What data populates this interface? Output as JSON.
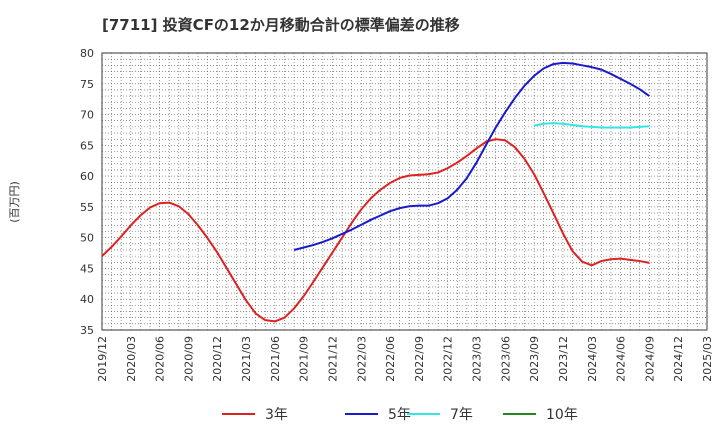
{
  "chart_data": {
    "type": "line",
    "title": "[7711]  投資CFの12か月移動合計の標準偏差の推移",
    "ylabel": "(百万円)",
    "xlabel": "",
    "ylim": [
      35,
      80
    ],
    "yticks": [
      35,
      40,
      45,
      50,
      55,
      60,
      65,
      70,
      75,
      80
    ],
    "xticks": [
      "2019/12",
      "2020/03",
      "2020/06",
      "2020/09",
      "2020/12",
      "2021/03",
      "2021/06",
      "2021/09",
      "2021/12",
      "2022/03",
      "2022/06",
      "2022/09",
      "2022/12",
      "2023/03",
      "2023/06",
      "2023/09",
      "2023/12",
      "2024/03",
      "2024/06",
      "2024/09",
      "2024/12",
      "2025/03"
    ],
    "grid": true,
    "legend_position": "bottom",
    "series": [
      {
        "name": "3年",
        "color": "#dd2222",
        "points": [
          [
            "2019/12",
            47.0
          ],
          [
            "2020/01",
            48.5
          ],
          [
            "2020/02",
            50.2
          ],
          [
            "2020/03",
            52.0
          ],
          [
            "2020/04",
            53.6
          ],
          [
            "2020/05",
            54.9
          ],
          [
            "2020/06",
            55.6
          ],
          [
            "2020/07",
            55.7
          ],
          [
            "2020/08",
            55.1
          ],
          [
            "2020/09",
            53.8
          ],
          [
            "2020/10",
            52.0
          ],
          [
            "2020/11",
            49.9
          ],
          [
            "2020/12",
            47.6
          ],
          [
            "2021/01",
            45.0
          ],
          [
            "2021/02",
            42.4
          ],
          [
            "2021/03",
            39.8
          ],
          [
            "2021/04",
            37.7
          ],
          [
            "2021/05",
            36.6
          ],
          [
            "2021/06",
            36.4
          ],
          [
            "2021/07",
            37.0
          ],
          [
            "2021/08",
            38.5
          ],
          [
            "2021/09",
            40.5
          ],
          [
            "2021/10",
            42.8
          ],
          [
            "2021/11",
            45.2
          ],
          [
            "2021/12",
            47.6
          ],
          [
            "2022/01",
            50.0
          ],
          [
            "2022/02",
            52.4
          ],
          [
            "2022/03",
            54.6
          ],
          [
            "2022/04",
            56.4
          ],
          [
            "2022/05",
            57.8
          ],
          [
            "2022/06",
            58.9
          ],
          [
            "2022/07",
            59.7
          ],
          [
            "2022/08",
            60.1
          ],
          [
            "2022/09",
            60.2
          ],
          [
            "2022/10",
            60.3
          ],
          [
            "2022/11",
            60.6
          ],
          [
            "2022/12",
            61.3
          ],
          [
            "2023/01",
            62.2
          ],
          [
            "2023/02",
            63.3
          ],
          [
            "2023/03",
            64.5
          ],
          [
            "2023/04",
            65.6
          ],
          [
            "2023/05",
            66.0
          ],
          [
            "2023/06",
            65.8
          ],
          [
            "2023/07",
            64.7
          ],
          [
            "2023/08",
            62.8
          ],
          [
            "2023/09",
            60.3
          ],
          [
            "2023/10",
            57.2
          ],
          [
            "2023/11",
            54.0
          ],
          [
            "2023/12",
            50.7
          ],
          [
            "2024/01",
            47.8
          ],
          [
            "2024/02",
            46.1
          ],
          [
            "2024/03",
            45.5
          ],
          [
            "2024/04",
            46.2
          ],
          [
            "2024/05",
            46.5
          ],
          [
            "2024/06",
            46.6
          ],
          [
            "2024/07",
            46.4
          ],
          [
            "2024/08",
            46.2
          ],
          [
            "2024/09",
            45.9
          ]
        ]
      },
      {
        "name": "5年",
        "color": "#1a1acc",
        "points": [
          [
            "2021/08",
            48.0
          ],
          [
            "2021/09",
            48.4
          ],
          [
            "2021/10",
            48.8
          ],
          [
            "2021/11",
            49.3
          ],
          [
            "2021/12",
            49.9
          ],
          [
            "2022/01",
            50.6
          ],
          [
            "2022/02",
            51.3
          ],
          [
            "2022/03",
            52.1
          ],
          [
            "2022/04",
            52.9
          ],
          [
            "2022/05",
            53.6
          ],
          [
            "2022/06",
            54.3
          ],
          [
            "2022/07",
            54.8
          ],
          [
            "2022/08",
            55.1
          ],
          [
            "2022/09",
            55.2
          ],
          [
            "2022/10",
            55.2
          ],
          [
            "2022/11",
            55.6
          ],
          [
            "2022/12",
            56.4
          ],
          [
            "2023/01",
            57.8
          ],
          [
            "2023/02",
            59.7
          ],
          [
            "2023/03",
            62.2
          ],
          [
            "2023/04",
            65.1
          ],
          [
            "2023/05",
            67.9
          ],
          [
            "2023/06",
            70.4
          ],
          [
            "2023/07",
            72.7
          ],
          [
            "2023/08",
            74.7
          ],
          [
            "2023/09",
            76.3
          ],
          [
            "2023/10",
            77.5
          ],
          [
            "2023/11",
            78.2
          ],
          [
            "2023/12",
            78.4
          ],
          [
            "2024/01",
            78.3
          ],
          [
            "2024/02",
            78.0
          ],
          [
            "2024/03",
            77.7
          ],
          [
            "2024/04",
            77.3
          ],
          [
            "2024/05",
            76.6
          ],
          [
            "2024/06",
            75.8
          ],
          [
            "2024/07",
            75.0
          ],
          [
            "2024/08",
            74.1
          ],
          [
            "2024/09",
            73.0
          ]
        ]
      },
      {
        "name": "7年",
        "color": "#33e5e5",
        "points": [
          [
            "2023/09",
            68.2
          ],
          [
            "2023/10",
            68.5
          ],
          [
            "2023/11",
            68.6
          ],
          [
            "2023/12",
            68.5
          ],
          [
            "2024/01",
            68.3
          ],
          [
            "2024/02",
            68.1
          ],
          [
            "2024/03",
            68.0
          ],
          [
            "2024/04",
            67.9
          ],
          [
            "2024/05",
            67.9
          ],
          [
            "2024/06",
            67.9
          ],
          [
            "2024/07",
            67.9
          ],
          [
            "2024/08",
            68.0
          ],
          [
            "2024/09",
            68.1
          ]
        ]
      },
      {
        "name": "10年",
        "color": "#228822",
        "points": []
      }
    ]
  }
}
